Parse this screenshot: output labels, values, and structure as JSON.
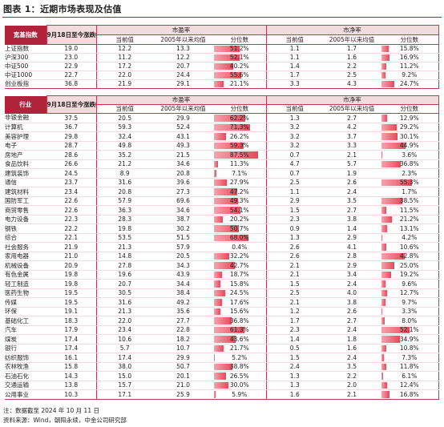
{
  "title": "图表 1：近期市场表现及估值",
  "headers": {
    "index_label": "宽基指数",
    "industry_label": "行业",
    "change_label": "9月18日至今涨跌幅(%)",
    "pe_group": "市盈率",
    "pb_group": "市净率",
    "current": "当前值",
    "mean": "2005年以来均值",
    "pctile": "分位数"
  },
  "indices": [
    {
      "name": "上证指数",
      "chg": "19.0",
      "pe": "12.2",
      "pe_mean": "13.3",
      "pe_pct": "51.2%",
      "pb": "1.1",
      "pb_mean": "1.7",
      "pb_pct": "15.8%"
    },
    {
      "name": "沪深300",
      "chg": "23.0",
      "pe": "11.2",
      "pe_mean": "12.2",
      "pe_pct": "52.1%",
      "pb": "1.1",
      "pb_mean": "1.6",
      "pb_pct": "16.9%"
    },
    {
      "name": "中证500",
      "chg": "22.9",
      "pe": "17.2",
      "pe_mean": "20.7",
      "pe_pct": "40.2%",
      "pb": "1.4",
      "pb_mean": "2.2",
      "pb_pct": "11.2%"
    },
    {
      "name": "中证1000",
      "chg": "22.7",
      "pe": "22.0",
      "pe_mean": "24.4",
      "pe_pct": "55.6%",
      "pb": "1.7",
      "pb_mean": "2.5",
      "pb_pct": "9.2%"
    },
    {
      "name": "创业板指",
      "chg": "36.8",
      "pe": "21.9",
      "pe_mean": "29.1",
      "pe_pct": "21.1%",
      "pb": "3.3",
      "pb_mean": "4.3",
      "pb_pct": "24.7%"
    }
  ],
  "industries": [
    {
      "name": "非银金融",
      "chg": "37.5",
      "pe": "20.5",
      "pe_mean": "29.9",
      "pe_pct": "62.2%",
      "pb": "1.3",
      "pb_mean": "2.7",
      "pb_pct": "12.9%"
    },
    {
      "name": "计算机",
      "chg": "36.7",
      "pe": "59.3",
      "pe_mean": "52.4",
      "pe_pct": "71.3%",
      "pb": "3.2",
      "pb_mean": "4.2",
      "pb_pct": "29.2%"
    },
    {
      "name": "美容护理",
      "chg": "29.8",
      "pe": "32.4",
      "pe_mean": "43.1",
      "pe_pct": "26.2%",
      "pb": "3.2",
      "pb_mean": "3.7",
      "pb_pct": "30.1%"
    },
    {
      "name": "电子",
      "chg": "28.7",
      "pe": "49.8",
      "pe_mean": "49.3",
      "pe_pct": "59.3%",
      "pb": "3.2",
      "pb_mean": "3.3",
      "pb_pct": "44.9%"
    },
    {
      "name": "房地产",
      "chg": "28.6",
      "pe": "35.2",
      "pe_mean": "21.5",
      "pe_pct": "87.5%",
      "pb": "0.7",
      "pb_mean": "2.1",
      "pb_pct": "3.6%"
    },
    {
      "name": "食品饮料",
      "chg": "26.6",
      "pe": "21.2",
      "pe_mean": "34.6",
      "pe_pct": "11.3%",
      "pb": "4.7",
      "pb_mean": "5.7",
      "pb_pct": "36.8%"
    },
    {
      "name": "建筑装饰",
      "chg": "24.5",
      "pe": "8.9",
      "pe_mean": "20.8",
      "pe_pct": "7.1%",
      "pb": "0.7",
      "pb_mean": "1.9",
      "pb_pct": "2.3%"
    },
    {
      "name": "通信",
      "chg": "23.7",
      "pe": "31.6",
      "pe_mean": "39.6",
      "pe_pct": "27.9%",
      "pb": "2.5",
      "pb_mean": "2.6",
      "pb_pct": "55.3%"
    },
    {
      "name": "建筑材料",
      "chg": "23.4",
      "pe": "20.8",
      "pe_mean": "27.3",
      "pe_pct": "47.2%",
      "pb": "1.1",
      "pb_mean": "2.4",
      "pb_pct": "1.7%"
    },
    {
      "name": "国防军工",
      "chg": "22.6",
      "pe": "57.9",
      "pe_mean": "69.6",
      "pe_pct": "49.3%",
      "pb": "2.9",
      "pb_mean": "3.5",
      "pb_pct": "38.5%"
    },
    {
      "name": "商贸零售",
      "chg": "22.6",
      "pe": "36.3",
      "pe_mean": "34.6",
      "pe_pct": "54.1%",
      "pb": "1.5",
      "pb_mean": "2.7",
      "pb_pct": "11.5%"
    },
    {
      "name": "电力设备",
      "chg": "22.3",
      "pe": "28.3",
      "pe_mean": "38.7",
      "pe_pct": "20.2%",
      "pb": "2.3",
      "pb_mean": "3.8",
      "pb_pct": "21.2%"
    },
    {
      "name": "钢铁",
      "chg": "22.2",
      "pe": "19.8",
      "pe_mean": "30.2",
      "pe_pct": "50.7%",
      "pb": "0.9",
      "pb_mean": "1.4",
      "pb_pct": "13.1%"
    },
    {
      "name": "综合",
      "chg": "22.1",
      "pe": "53.5",
      "pe_mean": "51.5",
      "pe_pct": "68.0%",
      "pb": "1.3",
      "pb_mean": "2.9",
      "pb_pct": "4.2%"
    },
    {
      "name": "社会服务",
      "chg": "21.9",
      "pe": "21.3",
      "pe_mean": "57.9",
      "pe_pct": "0.4%",
      "pb": "2.6",
      "pb_mean": "4.1",
      "pb_pct": "10.6%"
    },
    {
      "name": "家用电器",
      "chg": "21.0",
      "pe": "14.8",
      "pe_mean": "20.5",
      "pe_pct": "32.2%",
      "pb": "2.6",
      "pb_mean": "2.8",
      "pb_pct": "42.8%"
    },
    {
      "name": "机械设备",
      "chg": "20.9",
      "pe": "27.8",
      "pe_mean": "34.3",
      "pe_pct": "42.7%",
      "pb": "2.1",
      "pb_mean": "2.9",
      "pb_pct": "25.0%"
    },
    {
      "name": "有色金属",
      "chg": "19.8",
      "pe": "19.6",
      "pe_mean": "43.9",
      "pe_pct": "18.7%",
      "pb": "2.1",
      "pb_mean": "3.4",
      "pb_pct": "19.2%"
    },
    {
      "name": "轻工制造",
      "chg": "19.8",
      "pe": "20.7",
      "pe_mean": "34.4",
      "pe_pct": "15.8%",
      "pb": "1.5",
      "pb_mean": "2.4",
      "pb_pct": "9.6%"
    },
    {
      "name": "医药生物",
      "chg": "19.5",
      "pe": "30.5",
      "pe_mean": "38.4",
      "pe_pct": "24.5%",
      "pb": "2.5",
      "pb_mean": "4.0",
      "pb_pct": "12.7%"
    },
    {
      "name": "传媒",
      "chg": "19.5",
      "pe": "31.6",
      "pe_mean": "49.2",
      "pe_pct": "17.6%",
      "pb": "2.1",
      "pb_mean": "3.8",
      "pb_pct": "9.7%"
    },
    {
      "name": "环保",
      "chg": "19.1",
      "pe": "21.3",
      "pe_mean": "35.6",
      "pe_pct": "15.6%",
      "pb": "1.2",
      "pb_mean": "2.6",
      "pb_pct": "3.3%"
    },
    {
      "name": "基础化工",
      "chg": "18.3",
      "pe": "22.0",
      "pe_mean": "27.7",
      "pe_pct": "36.8%",
      "pb": "1.7",
      "pb_mean": "2.7",
      "pb_pct": "8.0%"
    },
    {
      "name": "汽车",
      "chg": "17.9",
      "pe": "23.4",
      "pe_mean": "22.8",
      "pe_pct": "61.3%",
      "pb": "2.3",
      "pb_mean": "2.4",
      "pb_pct": "52.1%"
    },
    {
      "name": "煤炭",
      "chg": "17.4",
      "pe": "10.6",
      "pe_mean": "18.2",
      "pe_pct": "43.6%",
      "pb": "1.4",
      "pb_mean": "1.8",
      "pb_pct": "34.9%"
    },
    {
      "name": "银行",
      "chg": "17.4",
      "pe": "5.7",
      "pe_mean": "10.7",
      "pe_pct": "21.7%",
      "pb": "0.5",
      "pb_mean": "1.6",
      "pb_pct": "10.8%"
    },
    {
      "name": "纺织服饰",
      "chg": "16.1",
      "pe": "17.4",
      "pe_mean": "29.9",
      "pe_pct": "5.2%",
      "pb": "1.5",
      "pb_mean": "2.4",
      "pb_pct": "7.3%"
    },
    {
      "name": "农林牧渔",
      "chg": "15.8",
      "pe": "38.0",
      "pe_mean": "50.7",
      "pe_pct": "38.8%",
      "pb": "2.4",
      "pb_mean": "3.5",
      "pb_pct": "11.8%"
    },
    {
      "name": "石油石化",
      "chg": "14.3",
      "pe": "15.0",
      "pe_mean": "20.1",
      "pe_pct": "26.5%",
      "pb": "1.3",
      "pb_mean": "2.2",
      "pb_pct": "6.1%"
    },
    {
      "name": "交通运输",
      "chg": "13.8",
      "pe": "15.7",
      "pe_mean": "21.0",
      "pe_pct": "30.0%",
      "pb": "1.3",
      "pb_mean": "2.0",
      "pb_pct": "12.4%"
    },
    {
      "name": "公用事业",
      "chg": "10.3",
      "pe": "17.1",
      "pe_mean": "25.9",
      "pe_pct": "5.9%",
      "pb": "1.6",
      "pb_mean": "2.1",
      "pb_pct": "16.8%"
    }
  ],
  "notes": {
    "note": "注：数据截至 2024 年 10 月 11 日",
    "source": "资料来源：Wind，朝阳永续，中金公司研究部"
  }
}
